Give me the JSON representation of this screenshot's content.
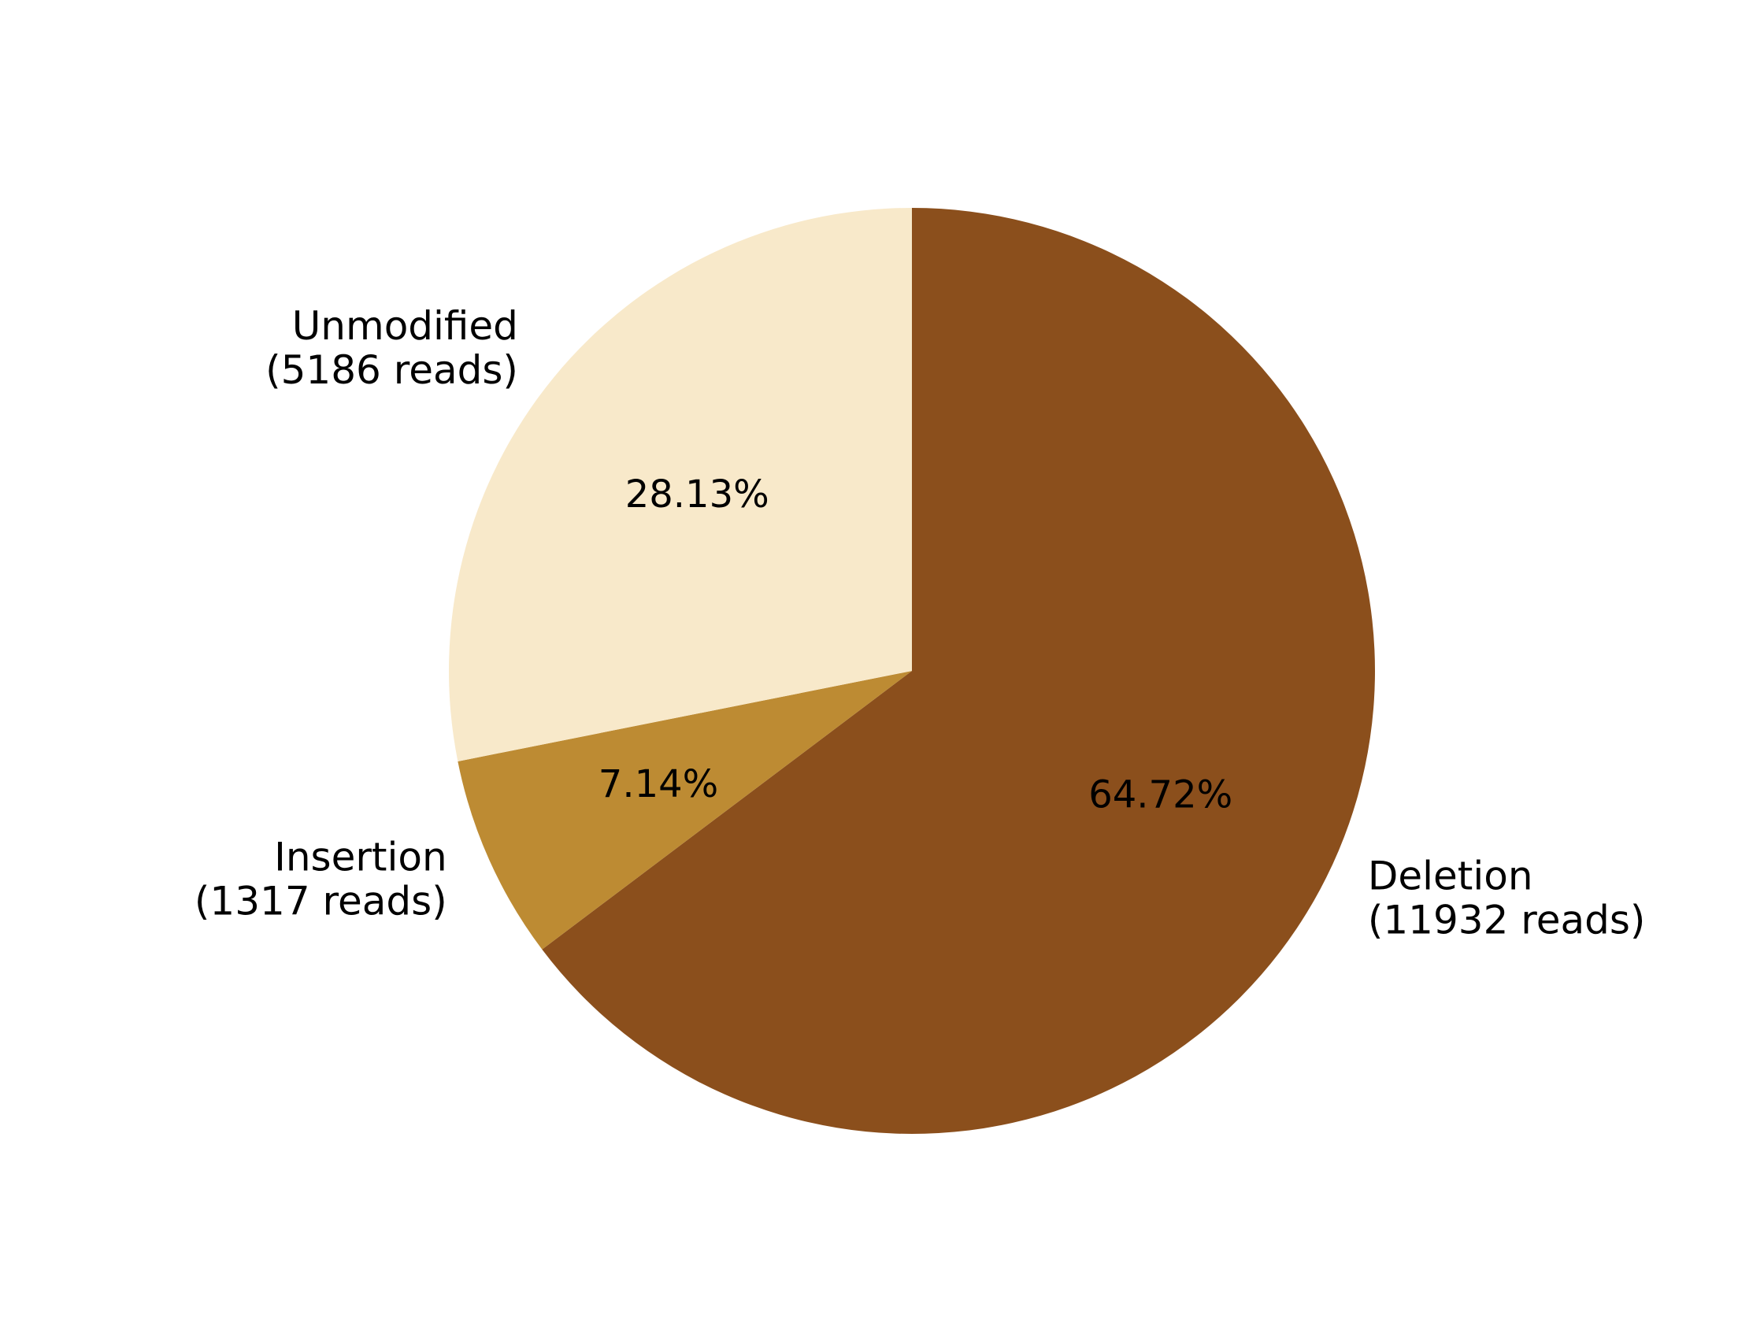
{
  "chart_data": {
    "type": "pie",
    "title": "",
    "start_angle_deg": 90,
    "direction": "clockwise",
    "slices": [
      {
        "label": "Deletion",
        "reads_label": "(11932 reads)",
        "value": 11932,
        "percent_label": "64.72%",
        "color": "#8B4F1C"
      },
      {
        "label": "Insertion",
        "reads_label": "(1317 reads)",
        "value": 1317,
        "percent_label": "7.14%",
        "color": "#BD8B33"
      },
      {
        "label": "Unmodified",
        "reads_label": "(5186 reads)",
        "value": 5186,
        "percent_label": "28.13%",
        "color": "#F8E9CA"
      }
    ]
  }
}
